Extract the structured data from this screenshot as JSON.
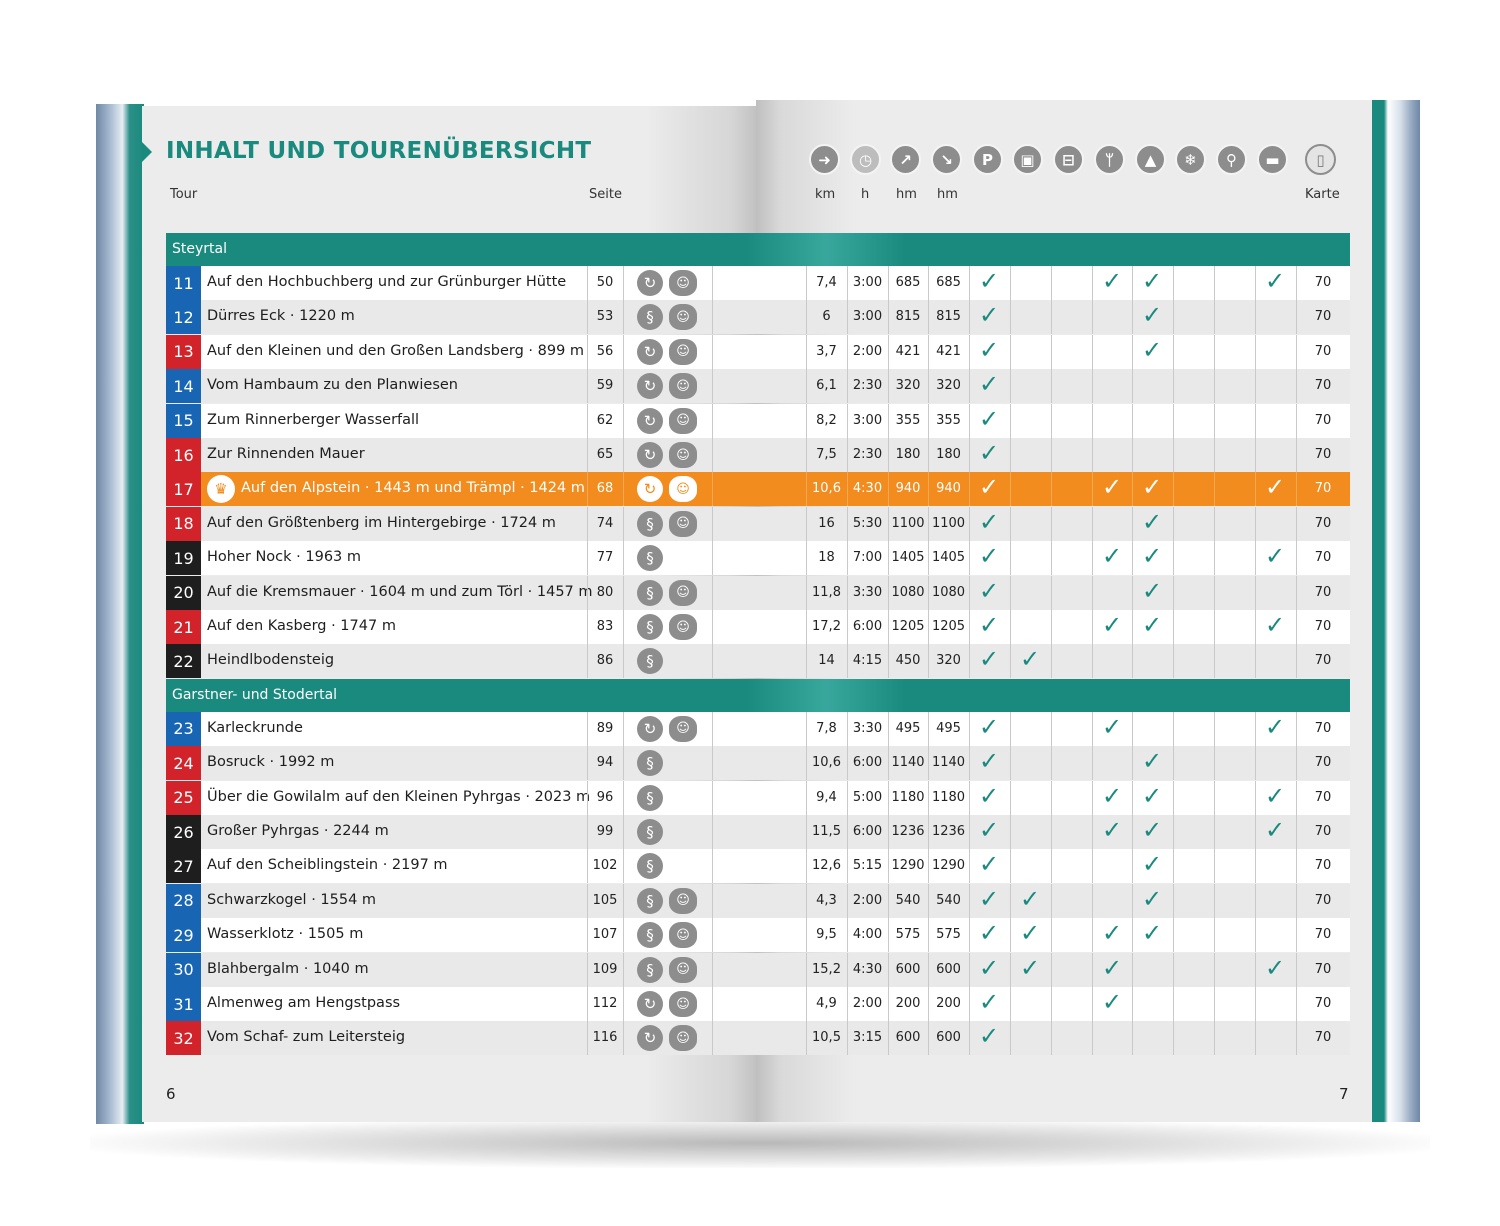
{
  "title": "INHALT UND TOURENÜBERSICHT",
  "headers": {
    "tour": "Tour",
    "seite": "Seite",
    "km": "km",
    "h": "h",
    "hm_up": "hm",
    "hm_down": "hm",
    "karte": "Karte"
  },
  "icons": [
    {
      "name": "signpost-icon",
      "glyph": "➜"
    },
    {
      "name": "clock-icon",
      "glyph": "◷"
    },
    {
      "name": "ascent-arrow-icon",
      "glyph": "↗"
    },
    {
      "name": "descent-arrow-icon",
      "glyph": "↘"
    },
    {
      "name": "parking-icon",
      "glyph": "P"
    },
    {
      "name": "bus-icon",
      "glyph": "▣"
    },
    {
      "name": "cable-car-icon",
      "glyph": "⊟"
    },
    {
      "name": "restaurant-icon",
      "glyph": "ᛘ"
    },
    {
      "name": "summit-icon",
      "glyph": "▲"
    },
    {
      "name": "winter-icon",
      "glyph": "❄"
    },
    {
      "name": "bicycle-icon",
      "glyph": "⚲"
    },
    {
      "name": "overnight-bed-icon",
      "glyph": "▬"
    },
    {
      "name": "map-icon",
      "glyph": "▯"
    }
  ],
  "sections": [
    {
      "label": "Steyrtal",
      "rows": [
        {
          "num": "11",
          "color": "blue",
          "name": "Auf den Hochbuchberg und zur Grünburger Hütte",
          "page": "50",
          "diff": "round",
          "kids": true,
          "km": "7,4",
          "h": "3:00",
          "up": "685",
          "down": "685",
          "checks": [
            0,
            3,
            4,
            11
          ],
          "map": "70"
        },
        {
          "num": "12",
          "color": "blue",
          "name": "Dürres Eck · 1220 m",
          "page": "53",
          "diff": "trail",
          "kids": true,
          "km": "6",
          "h": "3:00",
          "up": "815",
          "down": "815",
          "checks": [
            0,
            4
          ],
          "map": "70"
        },
        {
          "num": "13",
          "color": "red",
          "name": "Auf den Kleinen und den Großen Landsberg · 899 m",
          "page": "56",
          "diff": "round",
          "kids": true,
          "km": "3,7",
          "h": "2:00",
          "up": "421",
          "down": "421",
          "checks": [
            0,
            4
          ],
          "map": "70"
        },
        {
          "num": "14",
          "color": "blue",
          "name": "Vom Hambaum zu den Planwiesen",
          "page": "59",
          "diff": "round",
          "kids": true,
          "km": "6,1",
          "h": "2:30",
          "up": "320",
          "down": "320",
          "checks": [
            0
          ],
          "map": "70"
        },
        {
          "num": "15",
          "color": "blue",
          "name": "Zum Rinnerberger Wasserfall",
          "page": "62",
          "diff": "round",
          "kids": true,
          "km": "8,2",
          "h": "3:00",
          "up": "355",
          "down": "355",
          "checks": [
            0
          ],
          "map": "70"
        },
        {
          "num": "16",
          "color": "red",
          "name": "Zur Rinnenden Mauer",
          "page": "65",
          "diff": "round",
          "kids": true,
          "km": "7,5",
          "h": "2:30",
          "up": "180",
          "down": "180",
          "checks": [
            0
          ],
          "map": "70"
        },
        {
          "num": "17",
          "color": "red",
          "name": "Auf den Alpstein · 1443 m und Trämpl · 1424 m",
          "page": "68",
          "diff": "round",
          "kids": true,
          "km": "10,6",
          "h": "4:30",
          "up": "940",
          "down": "940",
          "checks": [
            0,
            3,
            4,
            11
          ],
          "map": "70",
          "highlight": true
        },
        {
          "num": "18",
          "color": "red",
          "name": "Auf den Größtenberg im Hintergebirge · 1724 m",
          "page": "74",
          "diff": "trail",
          "kids": true,
          "km": "16",
          "h": "5:30",
          "up": "1100",
          "down": "1100",
          "checks": [
            0,
            4
          ],
          "map": "70"
        },
        {
          "num": "19",
          "color": "black",
          "name": "Hoher Nock · 1963 m",
          "page": "77",
          "diff": "trail",
          "kids": false,
          "km": "18",
          "h": "7:00",
          "up": "1405",
          "down": "1405",
          "checks": [
            0,
            3,
            4,
            11
          ],
          "map": "70"
        },
        {
          "num": "20",
          "color": "black",
          "name": "Auf die Kremsmauer · 1604 m und zum Törl · 1457 m",
          "page": "80",
          "diff": "trail",
          "kids": true,
          "km": "11,8",
          "h": "3:30",
          "up": "1080",
          "down": "1080",
          "checks": [
            0,
            4
          ],
          "map": "70"
        },
        {
          "num": "21",
          "color": "red",
          "name": "Auf den Kasberg · 1747 m",
          "page": "83",
          "diff": "trail",
          "kids": true,
          "km": "17,2",
          "h": "6:00",
          "up": "1205",
          "down": "1205",
          "checks": [
            0,
            3,
            4,
            11
          ],
          "map": "70"
        },
        {
          "num": "22",
          "color": "black",
          "name": "Heindlbodensteig",
          "page": "86",
          "diff": "trail",
          "kids": false,
          "km": "14",
          "h": "4:15",
          "up": "450",
          "down": "320",
          "checks": [
            0,
            1
          ],
          "map": "70"
        }
      ]
    },
    {
      "label": "Garstner- und Stodertal",
      "rows": [
        {
          "num": "23",
          "color": "blue",
          "name": "Karleckrunde",
          "page": "89",
          "diff": "round",
          "kids": true,
          "km": "7,8",
          "h": "3:30",
          "up": "495",
          "down": "495",
          "checks": [
            0,
            3,
            11
          ],
          "map": "70"
        },
        {
          "num": "24",
          "color": "red",
          "name": "Bosruck · 1992 m",
          "page": "94",
          "diff": "trail",
          "kids": false,
          "km": "10,6",
          "h": "6:00",
          "up": "1140",
          "down": "1140",
          "checks": [
            0,
            4
          ],
          "map": "70"
        },
        {
          "num": "25",
          "color": "red",
          "name": "Über die Gowilalm auf den Kleinen Pyhrgas · 2023 m",
          "page": "96",
          "diff": "trail",
          "kids": false,
          "km": "9,4",
          "h": "5:00",
          "up": "1180",
          "down": "1180",
          "checks": [
            0,
            3,
            4,
            11
          ],
          "map": "70"
        },
        {
          "num": "26",
          "color": "black",
          "name": "Großer Pyhrgas · 2244 m",
          "page": "99",
          "diff": "trail",
          "kids": false,
          "km": "11,5",
          "h": "6:00",
          "up": "1236",
          "down": "1236",
          "checks": [
            0,
            3,
            4,
            11
          ],
          "map": "70"
        },
        {
          "num": "27",
          "color": "black",
          "name": "Auf den Scheiblingstein · 2197 m",
          "page": "102",
          "diff": "trail",
          "kids": false,
          "km": "12,6",
          "h": "5:15",
          "up": "1290",
          "down": "1290",
          "checks": [
            0,
            4
          ],
          "map": "70"
        },
        {
          "num": "28",
          "color": "blue",
          "name": "Schwarzkogel · 1554 m",
          "page": "105",
          "diff": "trail",
          "kids": true,
          "km": "4,3",
          "h": "2:00",
          "up": "540",
          "down": "540",
          "checks": [
            0,
            1,
            4
          ],
          "map": "70"
        },
        {
          "num": "29",
          "color": "blue",
          "name": "Wasserklotz · 1505 m",
          "page": "107",
          "diff": "trail",
          "kids": true,
          "km": "9,5",
          "h": "4:00",
          "up": "575",
          "down": "575",
          "checks": [
            0,
            1,
            3,
            4
          ],
          "map": "70"
        },
        {
          "num": "30",
          "color": "blue",
          "name": "Blahbergalm · 1040 m",
          "page": "109",
          "diff": "trail",
          "kids": true,
          "km": "15,2",
          "h": "4:30",
          "up": "600",
          "down": "600",
          "checks": [
            0,
            1,
            3,
            11
          ],
          "map": "70"
        },
        {
          "num": "31",
          "color": "blue",
          "name": "Almenweg am Hengstpass",
          "page": "112",
          "diff": "round",
          "kids": true,
          "km": "4,9",
          "h": "2:00",
          "up": "200",
          "down": "200",
          "checks": [
            0,
            3
          ],
          "map": "70"
        },
        {
          "num": "32",
          "color": "red",
          "name": "Vom Schaf- zum Leitersteig",
          "page": "116",
          "diff": "round",
          "kids": true,
          "km": "10,5",
          "h": "3:15",
          "up": "600",
          "down": "600",
          "checks": [
            0
          ],
          "map": "70"
        }
      ]
    }
  ],
  "page_left": "6",
  "page_right": "7",
  "colors": {
    "teal": "#1a8a7e",
    "orange": "#f28c1e",
    "blue": "#1765b3",
    "red": "#d2232a",
    "black": "#1e1e1e"
  }
}
